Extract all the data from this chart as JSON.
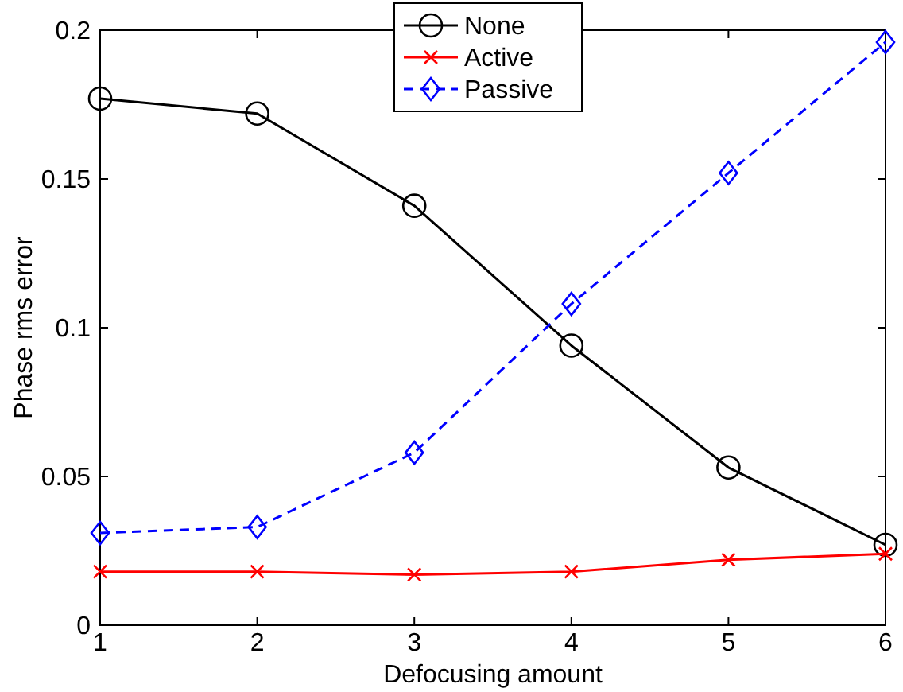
{
  "chart_data": {
    "type": "line",
    "xlabel": "Defocusing amount",
    "ylabel": "Phase rms error",
    "x": [
      1,
      2,
      3,
      4,
      5,
      6
    ],
    "xlim": [
      1,
      6
    ],
    "xticks": [
      1,
      2,
      3,
      4,
      5,
      6
    ],
    "ylim": [
      0,
      0.2
    ],
    "yticks": [
      0,
      0.05,
      0.1,
      0.15,
      0.2
    ],
    "grid": false,
    "legend": "top",
    "series": [
      {
        "name": "None",
        "color": "#000000",
        "marker": "circle",
        "line_style": "solid",
        "values": [
          0.177,
          0.172,
          0.141,
          0.094,
          0.053,
          0.027
        ]
      },
      {
        "name": "Active",
        "color": "#ff0000",
        "marker": "cross",
        "line_style": "solid",
        "values": [
          0.018,
          0.018,
          0.017,
          0.018,
          0.022,
          0.024
        ]
      },
      {
        "name": "Passive",
        "color": "#0000ff",
        "marker": "diamond",
        "line_style": "dashed",
        "values": [
          0.031,
          0.033,
          0.058,
          0.108,
          0.152,
          0.196
        ]
      }
    ]
  }
}
